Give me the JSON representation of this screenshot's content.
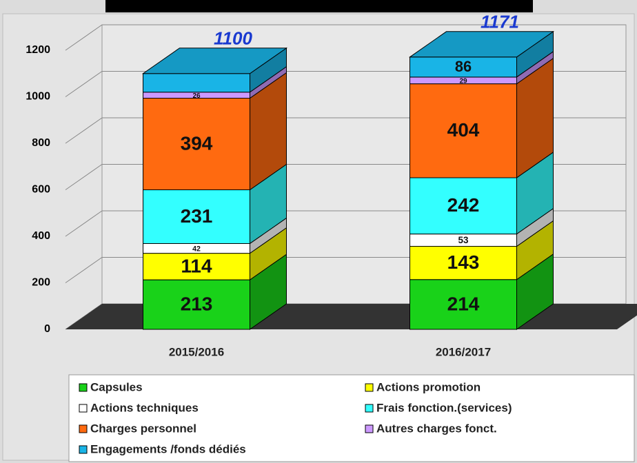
{
  "chart_data": {
    "type": "bar3d_stacked",
    "categories": [
      "2015/2016",
      "2016/2017"
    ],
    "series": [
      {
        "name": "Capsules",
        "color": "#19d219",
        "values": [
          213,
          214
        ]
      },
      {
        "name": "Actions promotion",
        "color": "#ffff00",
        "values": [
          114,
          143
        ]
      },
      {
        "name": "Actions techniques",
        "color": "#ffffff",
        "values": [
          42,
          53
        ]
      },
      {
        "name": "Frais fonction.(services)",
        "color": "#33ffff",
        "values": [
          231,
          242
        ]
      },
      {
        "name": "Charges personnel",
        "color": "#ff6a10",
        "values": [
          394,
          404
        ]
      },
      {
        "name": "Autres charges fonct.",
        "color": "#cc99ff",
        "values": [
          26,
          29
        ]
      },
      {
        "name": "Engagements /fonds dédiés",
        "color": "#19b4e6",
        "values": [
          80,
          86
        ],
        "value_labels": [
          null,
          "86"
        ]
      }
    ],
    "totals": [
      1100,
      1171
    ],
    "ylim": [
      0,
      1200
    ],
    "yticks": [
      0,
      200,
      400,
      600,
      800,
      1000,
      1200
    ],
    "grid": true
  }
}
